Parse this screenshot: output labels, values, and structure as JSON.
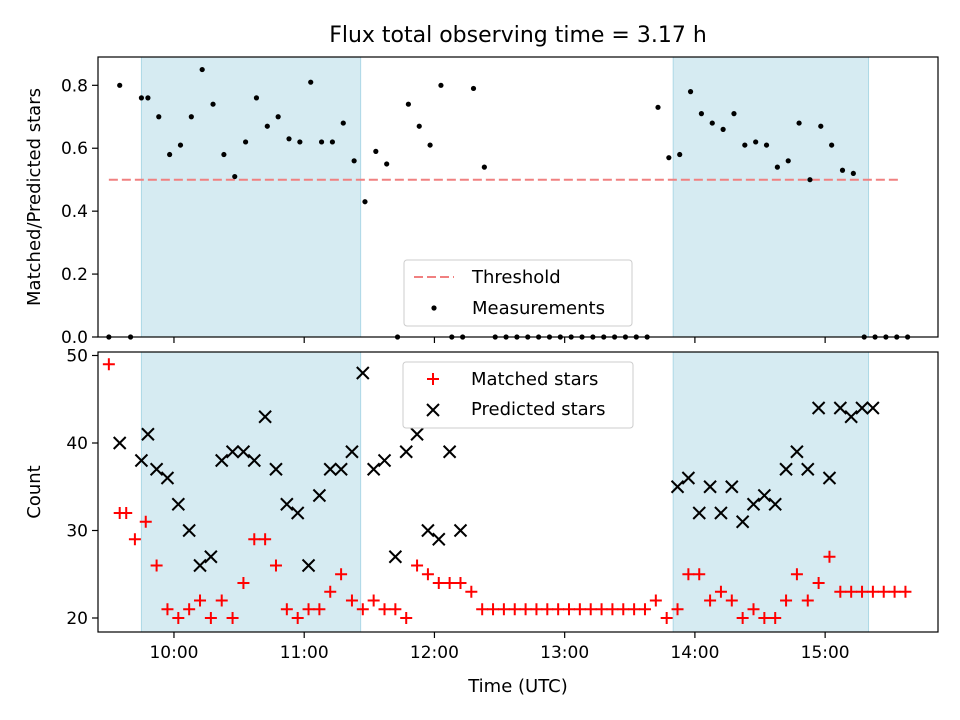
{
  "title": "Flux total observing time = 3.17 h",
  "chart_data": [
    {
      "type": "scatter",
      "panel": "top",
      "ylabel": "Matched/Predicted stars",
      "xlabel": "",
      "xlim": [
        "09:25",
        "15:52"
      ],
      "ylim": [
        0,
        0.89
      ],
      "yticks": [
        0.0,
        0.2,
        0.4,
        0.6,
        0.8
      ],
      "ytick_labels": [
        "0.0",
        "0.2",
        "0.4",
        "0.6",
        "0.8"
      ],
      "xticks": [
        "10:00",
        "11:00",
        "12:00",
        "13:00",
        "14:00",
        "15:00"
      ],
      "shaded_intervals": [
        [
          "09:45",
          "11:26"
        ],
        [
          "13:50",
          "15:20"
        ]
      ],
      "shade_color": "#add8e6",
      "threshold": {
        "name": "Threshold",
        "y": 0.5,
        "x_range": [
          "09:30",
          "15:35"
        ],
        "color": "#f08080"
      },
      "legend": {
        "location": "lower center",
        "entries": [
          "Threshold",
          "Measurements"
        ]
      },
      "series": [
        {
          "name": "Measurements",
          "color": "#000000",
          "x": [
            "09:30",
            "09:35",
            "09:40",
            "09:45",
            "09:48",
            "09:53",
            "09:58",
            "10:03",
            "10:08",
            "10:13",
            "10:18",
            "10:23",
            "10:28",
            "10:33",
            "10:38",
            "10:43",
            "10:48",
            "10:53",
            "10:58",
            "11:03",
            "11:08",
            "11:13",
            "11:18",
            "11:23",
            "11:28",
            "11:33",
            "11:38",
            "11:43",
            "11:48",
            "11:53",
            "11:58",
            "12:03",
            "12:08",
            "12:13",
            "12:18",
            "12:23",
            "12:28",
            "12:33",
            "12:38",
            "12:43",
            "12:48",
            "12:53",
            "12:58",
            "13:03",
            "13:08",
            "13:13",
            "13:18",
            "13:23",
            "13:28",
            "13:33",
            "13:38",
            "13:43",
            "13:48",
            "13:53",
            "13:58",
            "14:03",
            "14:08",
            "14:13",
            "14:18",
            "14:23",
            "14:28",
            "14:33",
            "14:38",
            "14:43",
            "14:48",
            "14:53",
            "14:58",
            "15:03",
            "15:08",
            "15:13",
            "15:18",
            "15:23",
            "15:28",
            "15:33",
            "15:38"
          ],
          "y": [
            0.0,
            0.8,
            0.0,
            0.76,
            0.76,
            0.7,
            0.58,
            0.61,
            0.7,
            0.85,
            0.74,
            0.58,
            0.51,
            0.62,
            0.76,
            0.67,
            0.7,
            0.63,
            0.62,
            0.81,
            0.62,
            0.62,
            0.68,
            0.56,
            0.43,
            0.59,
            0.55,
            0.0,
            0.74,
            0.67,
            0.61,
            0.8,
            0.0,
            0.0,
            0.79,
            0.54,
            0.0,
            0.0,
            0.0,
            0.0,
            0.0,
            0.0,
            0.0,
            0.0,
            0.0,
            0.0,
            0.0,
            0.0,
            0.0,
            0.0,
            0.0,
            0.73,
            0.57,
            0.58,
            0.78,
            0.71,
            0.68,
            0.66,
            0.71,
            0.61,
            0.62,
            0.61,
            0.54,
            0.56,
            0.68,
            0.5,
            0.67,
            0.61,
            0.53,
            0.52,
            0.0,
            0.0,
            0.0,
            0.0,
            0.0
          ]
        }
      ]
    },
    {
      "type": "scatter",
      "panel": "bottom",
      "ylabel": "Count",
      "xlabel": "Time (UTC)",
      "xlim": [
        "09:25",
        "15:52"
      ],
      "ylim": [
        18.4,
        50.4
      ],
      "yticks": [
        20,
        30,
        40,
        50
      ],
      "ytick_labels": [
        "20",
        "30",
        "40",
        "50"
      ],
      "xticks": [
        "10:00",
        "11:00",
        "12:00",
        "13:00",
        "14:00",
        "15:00"
      ],
      "xtick_labels": [
        "10:00",
        "11:00",
        "12:00",
        "13:00",
        "14:00",
        "15:00"
      ],
      "shaded_intervals": [
        [
          "09:45",
          "11:26"
        ],
        [
          "13:50",
          "15:20"
        ]
      ],
      "shade_color": "#add8e6",
      "legend": {
        "location": "upper center",
        "entries": [
          "Matched stars",
          "Predicted stars"
        ]
      },
      "series": [
        {
          "name": "Matched stars",
          "marker": "plus",
          "color": "#ff0000",
          "x": [
            "09:30",
            "09:35",
            "09:38",
            "09:42",
            "09:47",
            "09:52",
            "09:57",
            "10:02",
            "10:07",
            "10:12",
            "10:17",
            "10:22",
            "10:27",
            "10:32",
            "10:37",
            "10:42",
            "10:47",
            "10:52",
            "10:57",
            "11:02",
            "11:07",
            "11:12",
            "11:17",
            "11:22",
            "11:27",
            "11:32",
            "11:37",
            "11:42",
            "11:47",
            "11:52",
            "11:57",
            "12:02",
            "12:07",
            "12:12",
            "12:17",
            "12:22",
            "12:27",
            "12:32",
            "12:37",
            "12:42",
            "12:47",
            "12:52",
            "12:57",
            "13:02",
            "13:07",
            "13:12",
            "13:17",
            "13:22",
            "13:27",
            "13:32",
            "13:37",
            "13:42",
            "13:47",
            "13:52",
            "13:57",
            "14:02",
            "14:07",
            "14:12",
            "14:17",
            "14:22",
            "14:27",
            "14:32",
            "14:37",
            "14:42",
            "14:47",
            "14:52",
            "14:57",
            "15:02",
            "15:07",
            "15:12",
            "15:17",
            "15:22",
            "15:27",
            "15:32",
            "15:37"
          ],
          "y": [
            49,
            32,
            32,
            29,
            31,
            26,
            21,
            20,
            21,
            22,
            20,
            22,
            20,
            24,
            29,
            29,
            26,
            21,
            20,
            21,
            21,
            23,
            25,
            22,
            21,
            22,
            21,
            21,
            20,
            26,
            25,
            24,
            24,
            24,
            23,
            21,
            21,
            21,
            21,
            21,
            21,
            21,
            21,
            21,
            21,
            21,
            21,
            21,
            21,
            21,
            21,
            22,
            20,
            21,
            25,
            25,
            22,
            23,
            22,
            20,
            21,
            20,
            20,
            22,
            25,
            22,
            24,
            27,
            23,
            23,
            23,
            23,
            23,
            23,
            23
          ]
        },
        {
          "name": "Predicted stars",
          "marker": "x",
          "color": "#000000",
          "x": [
            "09:35",
            "09:45",
            "09:48",
            "09:52",
            "09:57",
            "10:02",
            "10:07",
            "10:12",
            "10:17",
            "10:22",
            "10:27",
            "10:32",
            "10:37",
            "10:42",
            "10:47",
            "10:52",
            "10:57",
            "11:02",
            "11:07",
            "11:12",
            "11:17",
            "11:22",
            "11:27",
            "11:32",
            "11:37",
            "11:42",
            "11:47",
            "11:52",
            "11:57",
            "12:02",
            "12:07",
            "12:12",
            "13:52",
            "13:57",
            "14:02",
            "14:07",
            "14:12",
            "14:17",
            "14:22",
            "14:27",
            "14:32",
            "14:37",
            "14:42",
            "14:47",
            "14:52",
            "14:57",
            "15:02",
            "15:07",
            "15:12",
            "15:17",
            "15:22"
          ],
          "y": [
            40,
            38,
            41,
            37,
            36,
            33,
            30,
            26,
            27,
            38,
            39,
            39,
            38,
            43,
            37,
            33,
            32,
            26,
            34,
            37,
            37,
            39,
            48,
            37,
            38,
            27,
            39,
            41,
            30,
            29,
            39,
            30,
            35,
            36,
            32,
            35,
            32,
            35,
            31,
            33,
            34,
            33,
            37,
            39,
            37,
            44,
            36,
            44,
            43,
            44,
            44
          ]
        }
      ]
    }
  ]
}
